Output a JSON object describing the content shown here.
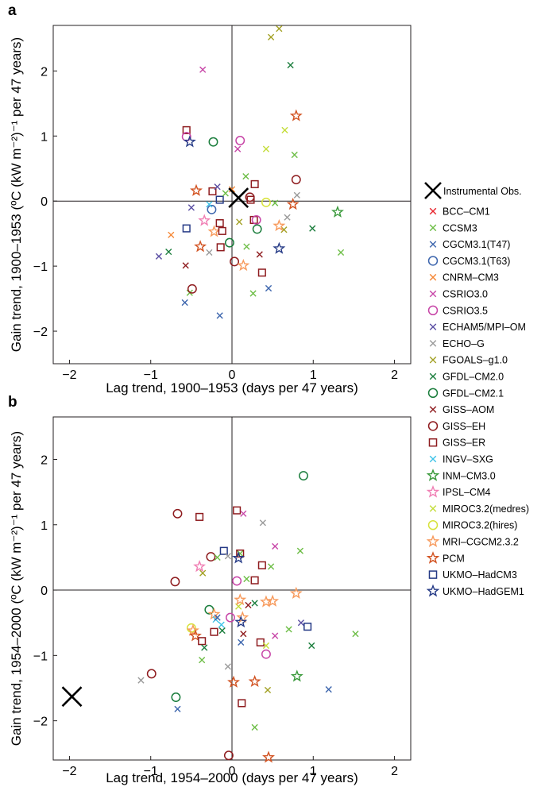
{
  "figure": {
    "panels": [
      {
        "letter": "a",
        "xlabel": "Lag trend, 1900–1953 (days per 47 years)",
        "ylabel": "Gain trend, 1900–1953 (ºC (kW m⁻²)⁻¹ per 47 years)"
      },
      {
        "letter": "b",
        "xlabel": "Lag trend, 1954–2000 (days per 47 years)",
        "ylabel": "Gain trend, 1954–2000 (ºC (kW m⁻²)⁻¹ per 47 years)"
      }
    ]
  },
  "legend": {
    "observations": {
      "label": "Instrumental Obs.",
      "color": "#000000",
      "marker": "x-large"
    },
    "models": [
      {
        "label": "BCC–CM1",
        "color": "#e8242c",
        "marker": "x"
      },
      {
        "label": "CCSM3",
        "color": "#6cbd45",
        "marker": "x"
      },
      {
        "label": "CGCM3.1(T47)",
        "color": "#3c65ad",
        "marker": "x"
      },
      {
        "label": "CGCM3.1(T63)",
        "color": "#3c65ad",
        "marker": "circle"
      },
      {
        "label": "CNRM–CM3",
        "color": "#f58634",
        "marker": "x"
      },
      {
        "label": "CSRIO3.0",
        "color": "#c745a7",
        "marker": "x"
      },
      {
        "label": "CSRIO3.5",
        "color": "#c745a7",
        "marker": "circle"
      },
      {
        "label": "ECHAM5/MPI–OM",
        "color": "#5a4ea3",
        "marker": "x"
      },
      {
        "label": "ECHO–G",
        "color": "#9a9a9a",
        "marker": "x"
      },
      {
        "label": "FGOALS–g1.0",
        "color": "#a3a125",
        "marker": "x"
      },
      {
        "label": "GFDL–CM2.0",
        "color": "#1a7d3c",
        "marker": "x"
      },
      {
        "label": "GFDL–CM2.1",
        "color": "#1a7d3c",
        "marker": "circle"
      },
      {
        "label": "GISS–AOM",
        "color": "#8e1b1e",
        "marker": "x"
      },
      {
        "label": "GISS–EH",
        "color": "#8e1b1e",
        "marker": "circle"
      },
      {
        "label": "GISS–ER",
        "color": "#8e1b1e",
        "marker": "square"
      },
      {
        "label": "INGV–SXG",
        "color": "#3fc3e8",
        "marker": "x"
      },
      {
        "label": "INM–CM3.0",
        "color": "#3b9a3c",
        "marker": "star"
      },
      {
        "label": "IPSL–CM4",
        "color": "#f07fb4",
        "marker": "star"
      },
      {
        "label": "MIROC3.2(medres)",
        "color": "#c4dd3a",
        "marker": "x"
      },
      {
        "label": "MIROC3.2(hires)",
        "color": "#d7e23a",
        "marker": "circle"
      },
      {
        "label": "MRI–CGCM2.3.2",
        "color": "#f79a5c",
        "marker": "star"
      },
      {
        "label": "PCM",
        "color": "#d25322",
        "marker": "star"
      },
      {
        "label": "UKMO–HadCM3",
        "color": "#253a86",
        "marker": "square"
      },
      {
        "label": "UKMO–HadGEM1",
        "color": "#253a86",
        "marker": "star"
      }
    ]
  },
  "chart_data": [
    {
      "type": "scatter",
      "panel": "a",
      "xlabel": "Lag trend, 1900–1953 (days per 47 years)",
      "ylabel": "Gain trend, 1900–1953 (ºC (kW m⁻²)⁻¹ per 47 years)",
      "xlim": [
        -2.2,
        2.2
      ],
      "ylim": [
        -2.5,
        2.7
      ],
      "xticks": [
        -2,
        -1,
        0,
        1,
        2
      ],
      "yticks": [
        -2,
        -1,
        0,
        1,
        2
      ],
      "zero_lines": true,
      "grid": false,
      "observation": {
        "x": 0.08,
        "y": 0.05
      },
      "points": [
        {
          "m": "ECHAM5/MPI–OM",
          "x": -0.9,
          "y": -0.85
        },
        {
          "m": "GFDL–CM2.0",
          "x": -0.78,
          "y": -0.78
        },
        {
          "m": "CNRM–CM3",
          "x": -0.75,
          "y": -0.52
        },
        {
          "m": "GISS–AOM",
          "x": -0.57,
          "y": -0.99
        },
        {
          "m": "CGCM3.1(T47)",
          "x": -0.58,
          "y": -1.56
        },
        {
          "m": "CCSM3",
          "x": -0.52,
          "y": -1.41
        },
        {
          "m": "GISS–ER",
          "x": -0.56,
          "y": 1.09
        },
        {
          "m": "CSRIO3.5",
          "x": -0.56,
          "y": 0.99
        },
        {
          "m": "UKMO–HadGEM1",
          "x": -0.52,
          "y": 0.91
        },
        {
          "m": "CSRIO3.0",
          "x": -0.36,
          "y": 2.02
        },
        {
          "m": "UKMO–HadCM3",
          "x": -0.56,
          "y": -0.42
        },
        {
          "m": "ECHAM5/MPI–OM",
          "x": -0.5,
          "y": -0.1
        },
        {
          "m": "PCM",
          "x": -0.44,
          "y": 0.16
        },
        {
          "m": "PCM",
          "x": -0.39,
          "y": -0.7
        },
        {
          "m": "IPSL–CM4",
          "x": -0.34,
          "y": -0.3
        },
        {
          "m": "ECHO–G",
          "x": -0.28,
          "y": -0.79
        },
        {
          "m": "GISS–ER",
          "x": -0.24,
          "y": 0.15
        },
        {
          "m": "CGCM3.1(T63)",
          "x": -0.25,
          "y": -0.13
        },
        {
          "m": "INGV–SXG",
          "x": -0.28,
          "y": -0.05
        },
        {
          "m": "GFDL–CM2.1",
          "x": -0.23,
          "y": 0.91
        },
        {
          "m": "GISS–EH",
          "x": -0.49,
          "y": -1.35
        },
        {
          "m": "CGCM3.1(T47)",
          "x": -0.15,
          "y": -1.76
        },
        {
          "m": "ECHAM5/MPI–OM",
          "x": -0.18,
          "y": 0.22
        },
        {
          "m": "UKMO–HadCM3",
          "x": -0.15,
          "y": 0.02
        },
        {
          "m": "CCSM3",
          "x": -0.08,
          "y": 0.12
        },
        {
          "m": "MRI–CGCM2.3.2",
          "x": -0.22,
          "y": -0.47
        },
        {
          "m": "GISS–ER",
          "x": -0.15,
          "y": -0.34
        },
        {
          "m": "GISS–ER",
          "x": -0.12,
          "y": -0.46
        },
        {
          "m": "GISS–ER",
          "x": -0.14,
          "y": -0.71
        },
        {
          "m": "GFDL–CM2.1",
          "x": -0.03,
          "y": -0.64
        },
        {
          "m": "CNRM–CM3",
          "x": 0.0,
          "y": 0.18
        },
        {
          "m": "CCSM3",
          "x": 0.17,
          "y": 0.38
        },
        {
          "m": "GISS–EH",
          "x": 0.03,
          "y": -0.93
        },
        {
          "m": "MRI–CGCM2.3.2",
          "x": 0.14,
          "y": -0.99
        },
        {
          "m": "CSRIO3.5",
          "x": 0.1,
          "y": 0.93
        },
        {
          "m": "CSRIO3.0",
          "x": 0.07,
          "y": 0.8
        },
        {
          "m": "CCSM3",
          "x": 0.18,
          "y": -0.7
        },
        {
          "m": "FGOALS–g1.0",
          "x": 0.09,
          "y": -0.32
        },
        {
          "m": "GISS–ER",
          "x": 0.23,
          "y": 0.02
        },
        {
          "m": "GISS–EH",
          "x": 0.22,
          "y": 0.06
        },
        {
          "m": "GISS–ER",
          "x": 0.28,
          "y": 0.26
        },
        {
          "m": "GISS–ER",
          "x": 0.27,
          "y": -0.29
        },
        {
          "m": "CSRIO3.5",
          "x": 0.3,
          "y": -0.29
        },
        {
          "m": "GFDL–CM2.1",
          "x": 0.31,
          "y": -0.43
        },
        {
          "m": "CCSM3",
          "x": 0.26,
          "y": -1.42
        },
        {
          "m": "GISS–AOM",
          "x": 0.34,
          "y": -0.82
        },
        {
          "m": "GISS–ER",
          "x": 0.37,
          "y": -1.1
        },
        {
          "m": "CGCM3.1(T47)",
          "x": 0.45,
          "y": -1.34
        },
        {
          "m": "MIROC3.2(medres)",
          "x": 0.42,
          "y": 0.8
        },
        {
          "m": "MIROC3.2(hires)",
          "x": 0.42,
          "y": -0.02
        },
        {
          "m": "CCSM3",
          "x": 0.53,
          "y": -0.03
        },
        {
          "m": "FGOALS–g1.0",
          "x": 0.48,
          "y": 2.52
        },
        {
          "m": "FGOALS–g1.0",
          "x": 0.58,
          "y": 2.65
        },
        {
          "m": "GFDL–CM2.0",
          "x": 0.72,
          "y": 2.09
        },
        {
          "m": "MIROC3.2(medres)",
          "x": 0.65,
          "y": 1.09
        },
        {
          "m": "CCSM3",
          "x": 0.77,
          "y": 0.71
        },
        {
          "m": "PCM",
          "x": 0.79,
          "y": 1.31
        },
        {
          "m": "GISS–EH",
          "x": 0.79,
          "y": 0.33
        },
        {
          "m": "ECHO–G",
          "x": 0.8,
          "y": 0.09
        },
        {
          "m": "PCM",
          "x": 0.75,
          "y": -0.05
        },
        {
          "m": "ECHO–G",
          "x": 0.68,
          "y": -0.25
        },
        {
          "m": "FGOALS–g1.0",
          "x": 0.64,
          "y": -0.44
        },
        {
          "m": "MRI–CGCM2.3.2",
          "x": 0.58,
          "y": -0.38
        },
        {
          "m": "UKMO–HadGEM1",
          "x": 0.58,
          "y": -0.73
        },
        {
          "m": "GFDL–CM2.0",
          "x": 0.99,
          "y": -0.42
        },
        {
          "m": "INM–CM3.0",
          "x": 1.3,
          "y": -0.17
        },
        {
          "m": "CCSM3",
          "x": 1.34,
          "y": -0.79
        }
      ]
    },
    {
      "type": "scatter",
      "panel": "b",
      "xlabel": "Lag trend, 1954–2000 (days per 47 years)",
      "ylabel": "Gain trend, 1954–2000 (ºC (kW m⁻²)⁻¹ per 47 years)",
      "xlim": [
        -2.2,
        2.2
      ],
      "ylim": [
        -2.6,
        2.65
      ],
      "xticks": [
        -2,
        -1,
        0,
        1,
        2
      ],
      "yticks": [
        -2,
        -1,
        0,
        1,
        2
      ],
      "zero_lines": true,
      "grid": false,
      "observation": {
        "x": -1.97,
        "y": -1.63
      },
      "points": [
        {
          "m": "ECHO–G",
          "x": -1.12,
          "y": -1.38
        },
        {
          "m": "GISS–EH",
          "x": -0.99,
          "y": -1.28
        },
        {
          "m": "GFDL–CM2.1",
          "x": -0.69,
          "y": -1.64
        },
        {
          "m": "CGCM3.1(T47)",
          "x": -0.67,
          "y": -1.82
        },
        {
          "m": "GISS–EH",
          "x": -0.7,
          "y": 0.13
        },
        {
          "m": "GISS–EH",
          "x": -0.67,
          "y": 1.17
        },
        {
          "m": "GISS–ER",
          "x": -0.4,
          "y": 1.12
        },
        {
          "m": "IPSL–CM4",
          "x": -0.4,
          "y": 0.36
        },
        {
          "m": "FGOALS–g1.0",
          "x": -0.36,
          "y": 0.26
        },
        {
          "m": "MIROC3.2(hires)",
          "x": -0.5,
          "y": -0.58
        },
        {
          "m": "MRI–CGCM2.3.2",
          "x": -0.48,
          "y": -0.62
        },
        {
          "m": "PCM",
          "x": -0.45,
          "y": -0.7
        },
        {
          "m": "GISS–ER",
          "x": -0.37,
          "y": -0.78
        },
        {
          "m": "GFDL–CM2.0",
          "x": -0.34,
          "y": -0.88
        },
        {
          "m": "CCSM3",
          "x": -0.37,
          "y": -1.07
        },
        {
          "m": "GFDL–CM2.1",
          "x": -0.28,
          "y": -0.3
        },
        {
          "m": "GISS–EH",
          "x": -0.26,
          "y": 0.51
        },
        {
          "m": "MRI–CGCM2.3.2",
          "x": -0.22,
          "y": -0.37
        },
        {
          "m": "INGV–SXG",
          "x": -0.2,
          "y": -0.45
        },
        {
          "m": "GISS–ER",
          "x": -0.22,
          "y": -0.64
        },
        {
          "m": "CGCM3.1(T47)",
          "x": -0.18,
          "y": -0.42
        },
        {
          "m": "CCSM3",
          "x": -0.18,
          "y": 0.5
        },
        {
          "m": "INGV–SXG",
          "x": -0.13,
          "y": -0.53
        },
        {
          "m": "GFDL–CM2.0",
          "x": -0.12,
          "y": -0.62
        },
        {
          "m": "UKMO–HadCM3",
          "x": -0.1,
          "y": 0.6
        },
        {
          "m": "ECHO–G",
          "x": -0.05,
          "y": 0.52
        },
        {
          "m": "CSRIO3.5",
          "x": -0.02,
          "y": -0.42
        },
        {
          "m": "ECHO–G",
          "x": -0.05,
          "y": -1.17
        },
        {
          "m": "PCM",
          "x": 0.02,
          "y": -1.41
        },
        {
          "m": "GISS–EH",
          "x": -0.04,
          "y": -2.53
        },
        {
          "m": "GISS–ER",
          "x": 0.06,
          "y": 1.22
        },
        {
          "m": "CSRIO3.0",
          "x": 0.14,
          "y": 1.17
        },
        {
          "m": "CCSM3",
          "x": 0.1,
          "y": 0.56
        },
        {
          "m": "GISS–ER",
          "x": 0.1,
          "y": 0.56
        },
        {
          "m": "UKMO–HadGEM1",
          "x": 0.08,
          "y": 0.49
        },
        {
          "m": "CSRIO3.5",
          "x": 0.06,
          "y": 0.14
        },
        {
          "m": "MIROC3.2(medres)",
          "x": 0.08,
          "y": -0.25
        },
        {
          "m": "MRI–CGCM2.3.2",
          "x": 0.1,
          "y": -0.15
        },
        {
          "m": "MRI–CGCM2.3.2",
          "x": 0.13,
          "y": -0.42
        },
        {
          "m": "UKMO–HadGEM1",
          "x": 0.11,
          "y": -0.49
        },
        {
          "m": "CGCM3.1(T47)",
          "x": 0.11,
          "y": -0.8
        },
        {
          "m": "GISS–AOM",
          "x": 0.14,
          "y": -0.67
        },
        {
          "m": "GISS–ER",
          "x": 0.12,
          "y": -1.73
        },
        {
          "m": "CCSM3",
          "x": 0.18,
          "y": 0.17
        },
        {
          "m": "GISS–ER",
          "x": 0.28,
          "y": 0.15
        },
        {
          "m": "GISS–AOM",
          "x": 0.2,
          "y": -0.23
        },
        {
          "m": "GFDL–CM2.0",
          "x": 0.28,
          "y": -0.2
        },
        {
          "m": "PCM",
          "x": 0.28,
          "y": -1.4
        },
        {
          "m": "CCSM3",
          "x": 0.28,
          "y": -2.1
        },
        {
          "m": "GISS–ER",
          "x": 0.37,
          "y": 0.38
        },
        {
          "m": "GISS–ER",
          "x": 0.35,
          "y": -0.8
        },
        {
          "m": "ECHO–G",
          "x": 0.38,
          "y": 1.03
        },
        {
          "m": "CCSM3",
          "x": 0.48,
          "y": 0.36
        },
        {
          "m": "CSRIO3.0",
          "x": 0.53,
          "y": 0.67
        },
        {
          "m": "MRI–CGCM2.3.2",
          "x": 0.42,
          "y": -0.18
        },
        {
          "m": "MRI–CGCM2.3.2",
          "x": 0.5,
          "y": -0.17
        },
        {
          "m": "MIROC3.2(medres)",
          "x": 0.42,
          "y": -0.85
        },
        {
          "m": "CSRIO3.5",
          "x": 0.42,
          "y": -0.98
        },
        {
          "m": "FGOALS–g1.0",
          "x": 0.44,
          "y": -1.53
        },
        {
          "m": "PCM",
          "x": 0.45,
          "y": -2.56
        },
        {
          "m": "CSRIO3.0",
          "x": 0.53,
          "y": -0.7
        },
        {
          "m": "CCSM3",
          "x": 0.7,
          "y": -0.6
        },
        {
          "m": "MRI–CGCM2.3.2",
          "x": 0.79,
          "y": -0.05
        },
        {
          "m": "INM–CM3.0",
          "x": 0.8,
          "y": -1.32
        },
        {
          "m": "CCSM3",
          "x": 0.84,
          "y": 0.6
        },
        {
          "m": "ECHAM5/MPI–OM",
          "x": 0.85,
          "y": -0.5
        },
        {
          "m": "UKMO–HadCM3",
          "x": 0.93,
          "y": -0.56
        },
        {
          "m": "GFDL–CM2.1",
          "x": 0.88,
          "y": 1.75
        },
        {
          "m": "GFDL–CM2.0",
          "x": 0.98,
          "y": -0.85
        },
        {
          "m": "CGCM3.1(T47)",
          "x": 1.19,
          "y": -1.52
        },
        {
          "m": "CCSM3",
          "x": 1.52,
          "y": -0.67
        }
      ]
    }
  ]
}
